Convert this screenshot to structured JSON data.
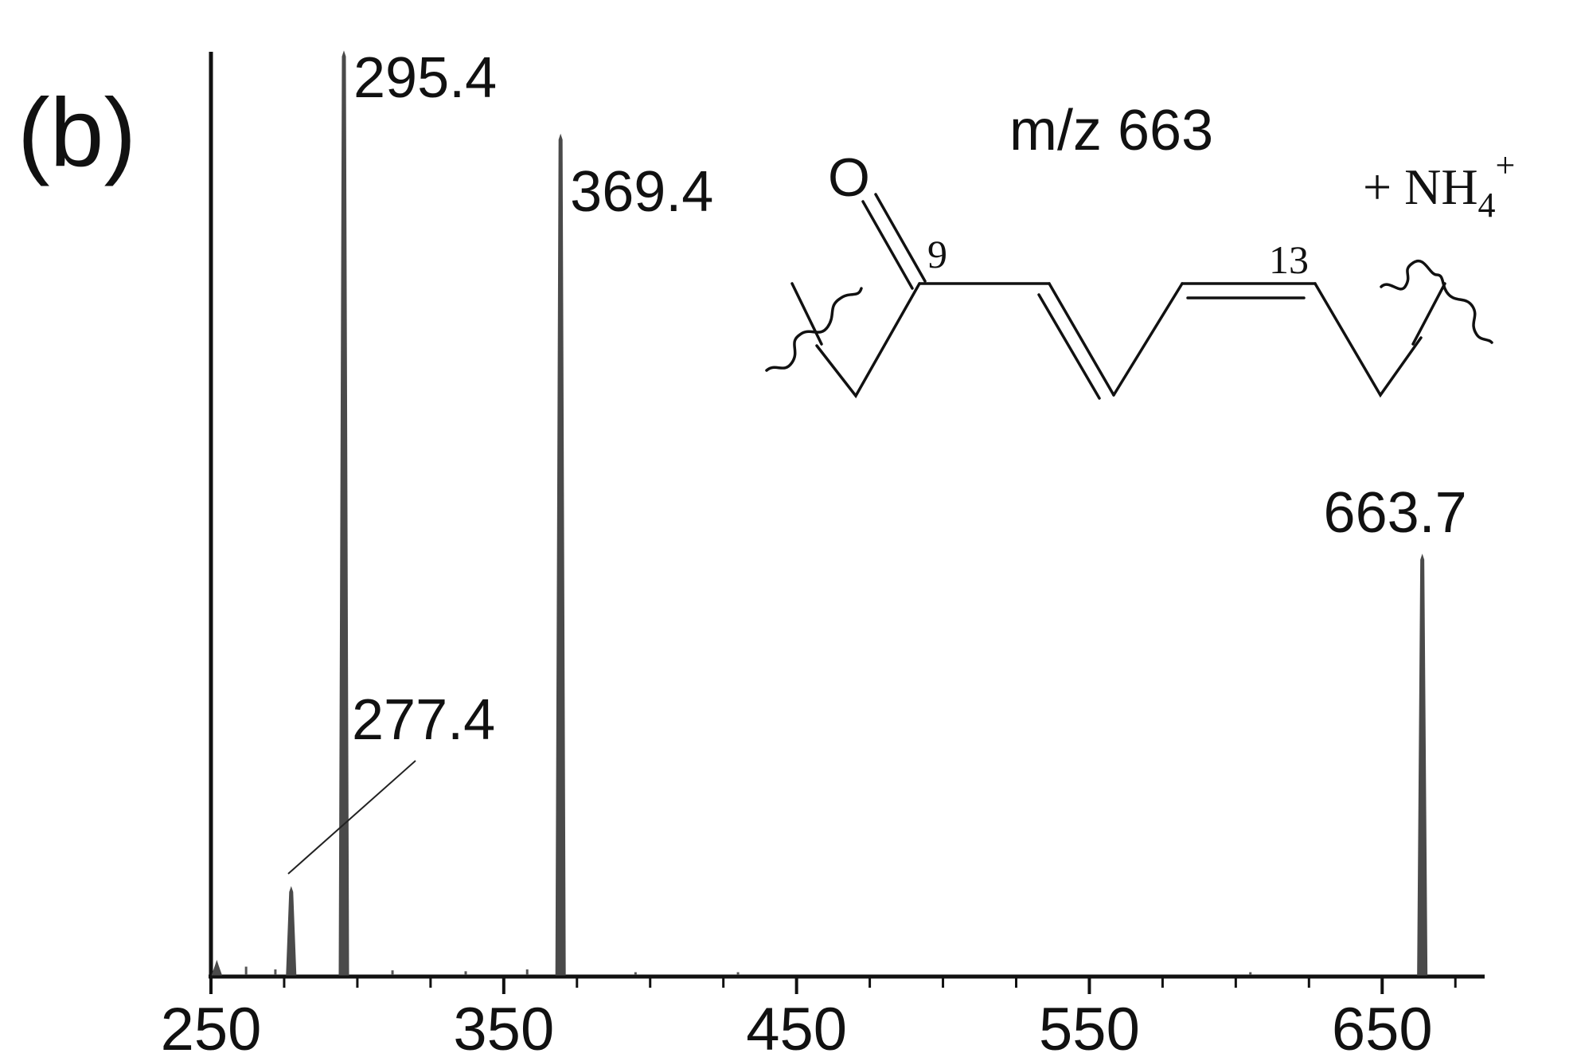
{
  "panel_label": "(b)",
  "chart_data": {
    "type": "line",
    "title": "",
    "xlabel": "",
    "ylabel": "",
    "xlim": [
      250,
      685
    ],
    "ylim": [
      0,
      100
    ],
    "xticks": [
      250,
      350,
      450,
      550,
      650
    ],
    "grid": false,
    "series": [
      {
        "peaks": [
          {
            "x": 252,
            "y": 1.5
          },
          {
            "x": 277.4,
            "y": 9.5
          },
          {
            "x": 295.4,
            "y": 100
          },
          {
            "x": 369.4,
            "y": 91
          },
          {
            "x": 663.7,
            "y": 45.5
          }
        ]
      }
    ],
    "peak_labels": [
      {
        "text": "295.4",
        "x": 295.4,
        "y": 100
      },
      {
        "text": "369.4",
        "x": 369.4,
        "y": 91
      },
      {
        "text": "277.4",
        "x": 277.4,
        "y": 9.5
      },
      {
        "text": "663.7",
        "x": 663.7,
        "y": 45.5
      }
    ]
  },
  "structure": {
    "mz_label": "m/z 663",
    "adduct_label": "+ NH",
    "adduct_subscript": "4",
    "adduct_superscript": "+",
    "oxygen_label": "O",
    "carbon_label_9": "9",
    "carbon_label_13": "13"
  }
}
